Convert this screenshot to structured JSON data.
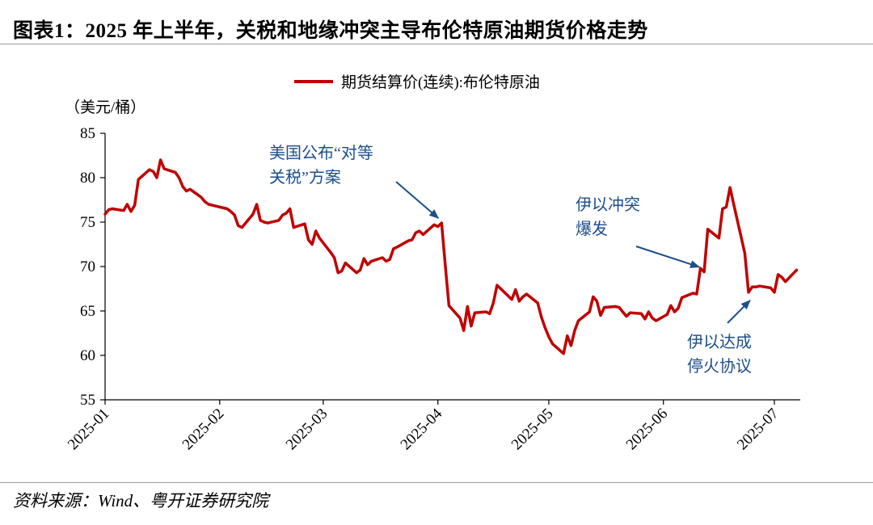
{
  "title": "图表1：2025 年上半年，关税和地缘冲突主导布伦特原油期货价格走势",
  "source": "资料来源：Wind、粤开证券研究院",
  "colors": {
    "series": "#c00000",
    "annotation": "#1c4e8a",
    "axis": "#000000"
  },
  "chart_data": {
    "type": "line",
    "title": "",
    "ylabel": "（美元/桶）",
    "xlabel": "",
    "ylim": [
      55,
      85
    ],
    "yticks": [
      55,
      60,
      65,
      70,
      75,
      80,
      85
    ],
    "x_tick_labels": [
      "2025-01",
      "2025-02",
      "2025-03",
      "2025-04",
      "2025-05",
      "2025-06",
      "2025-07"
    ],
    "x_tick_dates": [
      "2025-01-01",
      "2025-02-01",
      "2025-03-01",
      "2025-04-01",
      "2025-05-01",
      "2025-06-01",
      "2025-07-01"
    ],
    "x_range": [
      "2025-01-01",
      "2025-07-08"
    ],
    "grid": false,
    "legend": "top",
    "series": [
      {
        "name": "期货结算价(连续):布伦特原油",
        "color": "#c00000",
        "points": [
          [
            "2025-01-01",
            75.9
          ],
          [
            "2025-01-02",
            76.4
          ],
          [
            "2025-01-03",
            76.5
          ],
          [
            "2025-01-06",
            76.3
          ],
          [
            "2025-01-07",
            77.0
          ],
          [
            "2025-01-08",
            76.2
          ],
          [
            "2025-01-09",
            76.9
          ],
          [
            "2025-01-10",
            79.8
          ],
          [
            "2025-01-13",
            80.9
          ],
          [
            "2025-01-14",
            80.7
          ],
          [
            "2025-01-15",
            80.0
          ],
          [
            "2025-01-16",
            82.0
          ],
          [
            "2025-01-17",
            81.0
          ],
          [
            "2025-01-20",
            80.6
          ],
          [
            "2025-01-21",
            80.0
          ],
          [
            "2025-01-22",
            79.0
          ],
          [
            "2025-01-23",
            78.5
          ],
          [
            "2025-01-24",
            78.7
          ],
          [
            "2025-01-27",
            77.8
          ],
          [
            "2025-01-28",
            77.3
          ],
          [
            "2025-01-29",
            77.0
          ],
          [
            "2025-01-30",
            76.9
          ],
          [
            "2025-01-31",
            76.8
          ],
          [
            "2025-02-03",
            76.5
          ],
          [
            "2025-02-04",
            76.2
          ],
          [
            "2025-02-05",
            75.8
          ],
          [
            "2025-02-06",
            74.6
          ],
          [
            "2025-02-07",
            74.4
          ],
          [
            "2025-02-10",
            75.9
          ],
          [
            "2025-02-11",
            77.0
          ],
          [
            "2025-02-12",
            75.2
          ],
          [
            "2025-02-13",
            75.0
          ],
          [
            "2025-02-14",
            74.9
          ],
          [
            "2025-02-17",
            75.2
          ],
          [
            "2025-02-18",
            75.8
          ],
          [
            "2025-02-19",
            76.0
          ],
          [
            "2025-02-20",
            76.5
          ],
          [
            "2025-02-21",
            74.4
          ],
          [
            "2025-02-24",
            74.8
          ],
          [
            "2025-02-25",
            73.0
          ],
          [
            "2025-02-26",
            72.5
          ],
          [
            "2025-02-27",
            74.0
          ],
          [
            "2025-02-28",
            73.2
          ],
          [
            "2025-03-03",
            71.6
          ],
          [
            "2025-03-04",
            71.0
          ],
          [
            "2025-03-05",
            69.3
          ],
          [
            "2025-03-06",
            69.5
          ],
          [
            "2025-03-07",
            70.4
          ],
          [
            "2025-03-10",
            69.3
          ],
          [
            "2025-03-11",
            69.6
          ],
          [
            "2025-03-12",
            70.9
          ],
          [
            "2025-03-13",
            70.2
          ],
          [
            "2025-03-14",
            70.6
          ],
          [
            "2025-03-17",
            71.0
          ],
          [
            "2025-03-18",
            70.6
          ],
          [
            "2025-03-19",
            70.8
          ],
          [
            "2025-03-20",
            72.0
          ],
          [
            "2025-03-21",
            72.2
          ],
          [
            "2025-03-24",
            72.9
          ],
          [
            "2025-03-25",
            73.0
          ],
          [
            "2025-03-26",
            73.8
          ],
          [
            "2025-03-27",
            74.0
          ],
          [
            "2025-03-28",
            73.6
          ],
          [
            "2025-03-31",
            74.7
          ],
          [
            "2025-04-01",
            74.5
          ],
          [
            "2025-04-02",
            74.9
          ],
          [
            "2025-04-03",
            70.1
          ],
          [
            "2025-04-04",
            65.6
          ],
          [
            "2025-04-07",
            64.2
          ],
          [
            "2025-04-08",
            62.8
          ],
          [
            "2025-04-09",
            65.5
          ],
          [
            "2025-04-10",
            63.3
          ],
          [
            "2025-04-11",
            64.8
          ],
          [
            "2025-04-14",
            64.9
          ],
          [
            "2025-04-15",
            64.7
          ],
          [
            "2025-04-16",
            65.9
          ],
          [
            "2025-04-17",
            67.9
          ],
          [
            "2025-04-21",
            66.3
          ],
          [
            "2025-04-22",
            67.4
          ],
          [
            "2025-04-23",
            66.1
          ],
          [
            "2025-04-24",
            66.6
          ],
          [
            "2025-04-25",
            66.9
          ],
          [
            "2025-04-28",
            65.9
          ],
          [
            "2025-04-29",
            64.3
          ],
          [
            "2025-04-30",
            63.1
          ],
          [
            "2025-05-01",
            62.1
          ],
          [
            "2025-05-02",
            61.3
          ],
          [
            "2025-05-05",
            60.2
          ],
          [
            "2025-05-06",
            62.2
          ],
          [
            "2025-05-07",
            61.1
          ],
          [
            "2025-05-08",
            62.8
          ],
          [
            "2025-05-09",
            63.9
          ],
          [
            "2025-05-12",
            64.9
          ],
          [
            "2025-05-13",
            66.6
          ],
          [
            "2025-05-14",
            66.1
          ],
          [
            "2025-05-15",
            64.5
          ],
          [
            "2025-05-16",
            65.4
          ],
          [
            "2025-05-19",
            65.5
          ],
          [
            "2025-05-20",
            65.4
          ],
          [
            "2025-05-21",
            64.9
          ],
          [
            "2025-05-22",
            64.4
          ],
          [
            "2025-05-23",
            64.8
          ],
          [
            "2025-05-26",
            64.7
          ],
          [
            "2025-05-27",
            64.1
          ],
          [
            "2025-05-28",
            64.9
          ],
          [
            "2025-05-29",
            64.2
          ],
          [
            "2025-05-30",
            63.9
          ],
          [
            "2025-06-02",
            64.6
          ],
          [
            "2025-06-03",
            65.6
          ],
          [
            "2025-06-04",
            64.9
          ],
          [
            "2025-06-05",
            65.3
          ],
          [
            "2025-06-06",
            66.5
          ],
          [
            "2025-06-09",
            67.0
          ],
          [
            "2025-06-10",
            66.9
          ],
          [
            "2025-06-11",
            69.8
          ],
          [
            "2025-06-12",
            69.4
          ],
          [
            "2025-06-13",
            74.2
          ],
          [
            "2025-06-16",
            73.2
          ],
          [
            "2025-06-17",
            76.5
          ],
          [
            "2025-06-18",
            76.7
          ],
          [
            "2025-06-19",
            78.9
          ],
          [
            "2025-06-20",
            77.0
          ],
          [
            "2025-06-23",
            71.5
          ],
          [
            "2025-06-24",
            67.1
          ],
          [
            "2025-06-25",
            67.7
          ],
          [
            "2025-06-26",
            67.7
          ],
          [
            "2025-06-27",
            67.8
          ],
          [
            "2025-06-30",
            67.6
          ],
          [
            "2025-07-01",
            67.1
          ],
          [
            "2025-07-02",
            69.1
          ],
          [
            "2025-07-03",
            68.8
          ],
          [
            "2025-07-04",
            68.3
          ],
          [
            "2025-07-07",
            69.6
          ]
        ]
      }
    ],
    "annotations": [
      {
        "lines": [
          "美国公布“对等",
          "关税”方案"
        ],
        "target": [
          "2025-04-02",
          74.9
        ]
      },
      {
        "lines": [
          "伊以冲突",
          "爆发"
        ],
        "target": [
          "2025-06-12",
          69.4
        ]
      },
      {
        "lines": [
          "伊以达成",
          "停火协议"
        ],
        "target": [
          "2025-06-24",
          67.1
        ]
      }
    ]
  }
}
